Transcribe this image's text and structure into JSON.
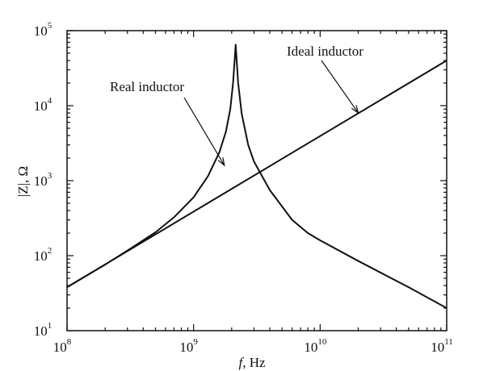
{
  "chart_data": {
    "type": "line",
    "scale": {
      "x": "log",
      "y": "log"
    },
    "xlim": [
      100000000.0,
      100000000000.0
    ],
    "ylim": [
      10,
      100000
    ],
    "xlabel": {
      "italic": "f",
      "text": ", Hz"
    },
    "ylabel": "|Z|, Ω",
    "x_ticks": [
      {
        "base": "10",
        "exp": "8",
        "value": 100000000.0
      },
      {
        "base": "10",
        "exp": "9",
        "value": 1000000000.0
      },
      {
        "base": "10",
        "exp": "10",
        "value": 10000000000.0
      },
      {
        "base": "10",
        "exp": "11",
        "value": 100000000000.0
      }
    ],
    "y_ticks": [
      {
        "base": "10",
        "exp": "1",
        "value": 10
      },
      {
        "base": "10",
        "exp": "2",
        "value": 100
      },
      {
        "base": "10",
        "exp": "3",
        "value": 1000
      },
      {
        "base": "10",
        "exp": "4",
        "value": 10000
      },
      {
        "base": "10",
        "exp": "5",
        "value": 100000
      }
    ],
    "series": [
      {
        "name": "Ideal inductor",
        "points": [
          [
            100000000.0,
            38
          ],
          [
            100000000000.0,
            40000
          ]
        ]
      },
      {
        "name": "Real inductor",
        "points": [
          [
            100000000.0,
            38
          ],
          [
            200000000.0,
            76
          ],
          [
            300000000.0,
            117
          ],
          [
            500000000.0,
            205
          ],
          [
            700000000.0,
            325
          ],
          [
            1000000000.0,
            600
          ],
          [
            1300000000.0,
            1150
          ],
          [
            1600000000.0,
            2400
          ],
          [
            1800000000.0,
            4500
          ],
          [
            1950000000.0,
            9000
          ],
          [
            2050000000.0,
            20000
          ],
          [
            2120000000.0,
            45000
          ],
          [
            2150000000.0,
            65000
          ],
          [
            2180000000.0,
            45000
          ],
          [
            2250000000.0,
            20000
          ],
          [
            2400000000.0,
            7800
          ],
          [
            2700000000.0,
            3000
          ],
          [
            3000000000.0,
            1800
          ],
          [
            4000000000.0,
            750
          ],
          [
            6000000000.0,
            300
          ],
          [
            8000000000.0,
            200
          ],
          [
            10000000000.0,
            160
          ],
          [
            20000000000.0,
            85
          ],
          [
            50000000000.0,
            38
          ],
          [
            100000000000.0,
            20
          ]
        ]
      }
    ],
    "annotations": [
      {
        "text": "Real inductor",
        "target": [
          1750000000.0,
          1600
        ]
      },
      {
        "text": "Ideal inductor",
        "target": [
          20000000000.0,
          8000
        ]
      }
    ]
  }
}
